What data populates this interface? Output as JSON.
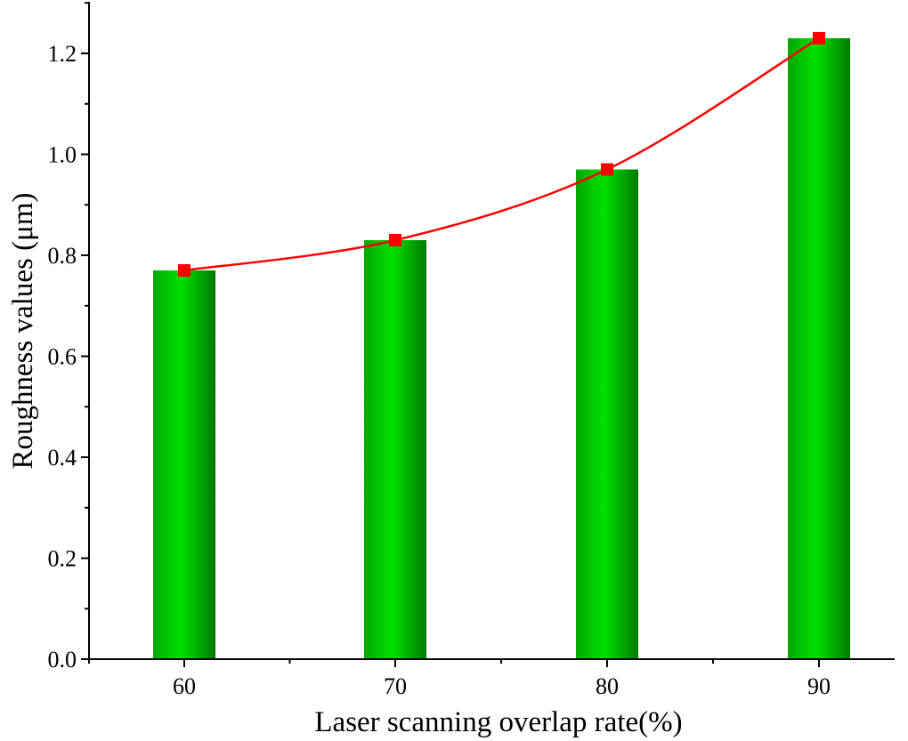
{
  "chart_data": {
    "type": "bar",
    "categories": [
      "60",
      "70",
      "80",
      "90"
    ],
    "series": [
      {
        "values": [
          0.77,
          0.83,
          0.97,
          1.23
        ],
        "render": "bar",
        "color": "#00cc00"
      },
      {
        "values": [
          0.77,
          0.83,
          0.97,
          1.23
        ],
        "render": "line-with-square-markers",
        "color": "#ff0000"
      }
    ],
    "title": "",
    "xlabel": "Laser scanning overlap rate(%)",
    "ylabel": "Roughness values (μm)",
    "ylim": [
      0,
      1.3
    ],
    "yticks": [
      "0.0",
      "0.2",
      "0.4",
      "0.6",
      "0.8",
      "1.0",
      "1.2"
    ],
    "grid": false,
    "legend": "none"
  }
}
